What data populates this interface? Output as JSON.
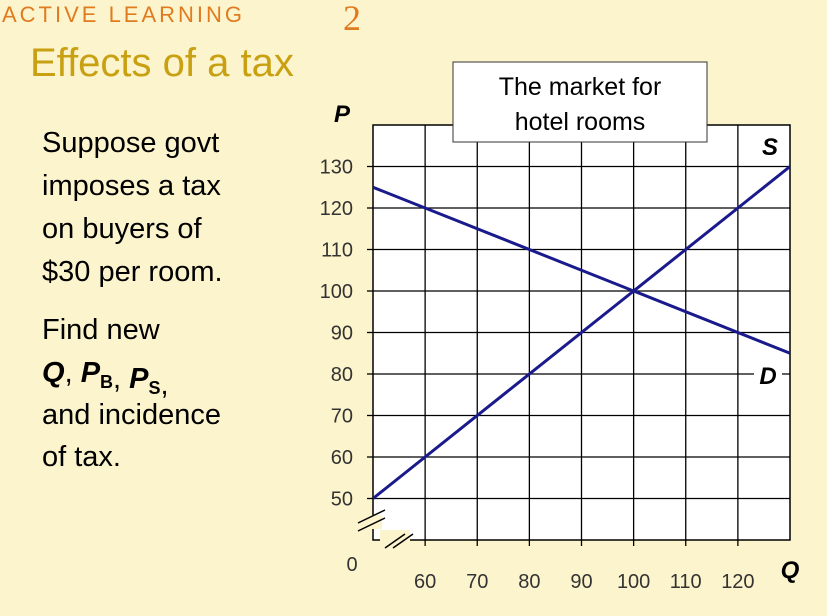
{
  "slide": {
    "kicker": "ACTIVE LEARNING",
    "number": "2",
    "heading": "Effects of a tax",
    "intro": [
      "Suppose govt",
      "imposes a tax",
      "on buyers of",
      "$30 per room."
    ],
    "question": {
      "lead": "Find new",
      "terms": [
        {
          "symbol": "Q"
        },
        {
          "symbol": "P",
          "sub": "B"
        },
        {
          "symbol": "P",
          "sub": "S"
        }
      ],
      "separator": ",",
      "tail": [
        "and incidence",
        "of tax."
      ]
    }
  },
  "chart_data": {
    "type": "line",
    "title": [
      "The market for",
      "hotel rooms"
    ],
    "x_label": "Q",
    "y_label": "P",
    "origin_label": "0",
    "x": [
      50,
      130
    ],
    "series": [
      {
        "name": "S",
        "color": "#1a1a8c",
        "values": [
          50,
          130
        ]
      },
      {
        "name": "D",
        "color": "#1a1a8c",
        "values": [
          125,
          85
        ]
      }
    ],
    "xlim": [
      50,
      130
    ],
    "ylim": [
      40,
      140
    ],
    "xticks": [
      60,
      70,
      80,
      90,
      100,
      110,
      120
    ],
    "yticks": [
      50,
      60,
      70,
      80,
      90,
      100,
      110,
      120,
      130
    ],
    "grid": true
  }
}
